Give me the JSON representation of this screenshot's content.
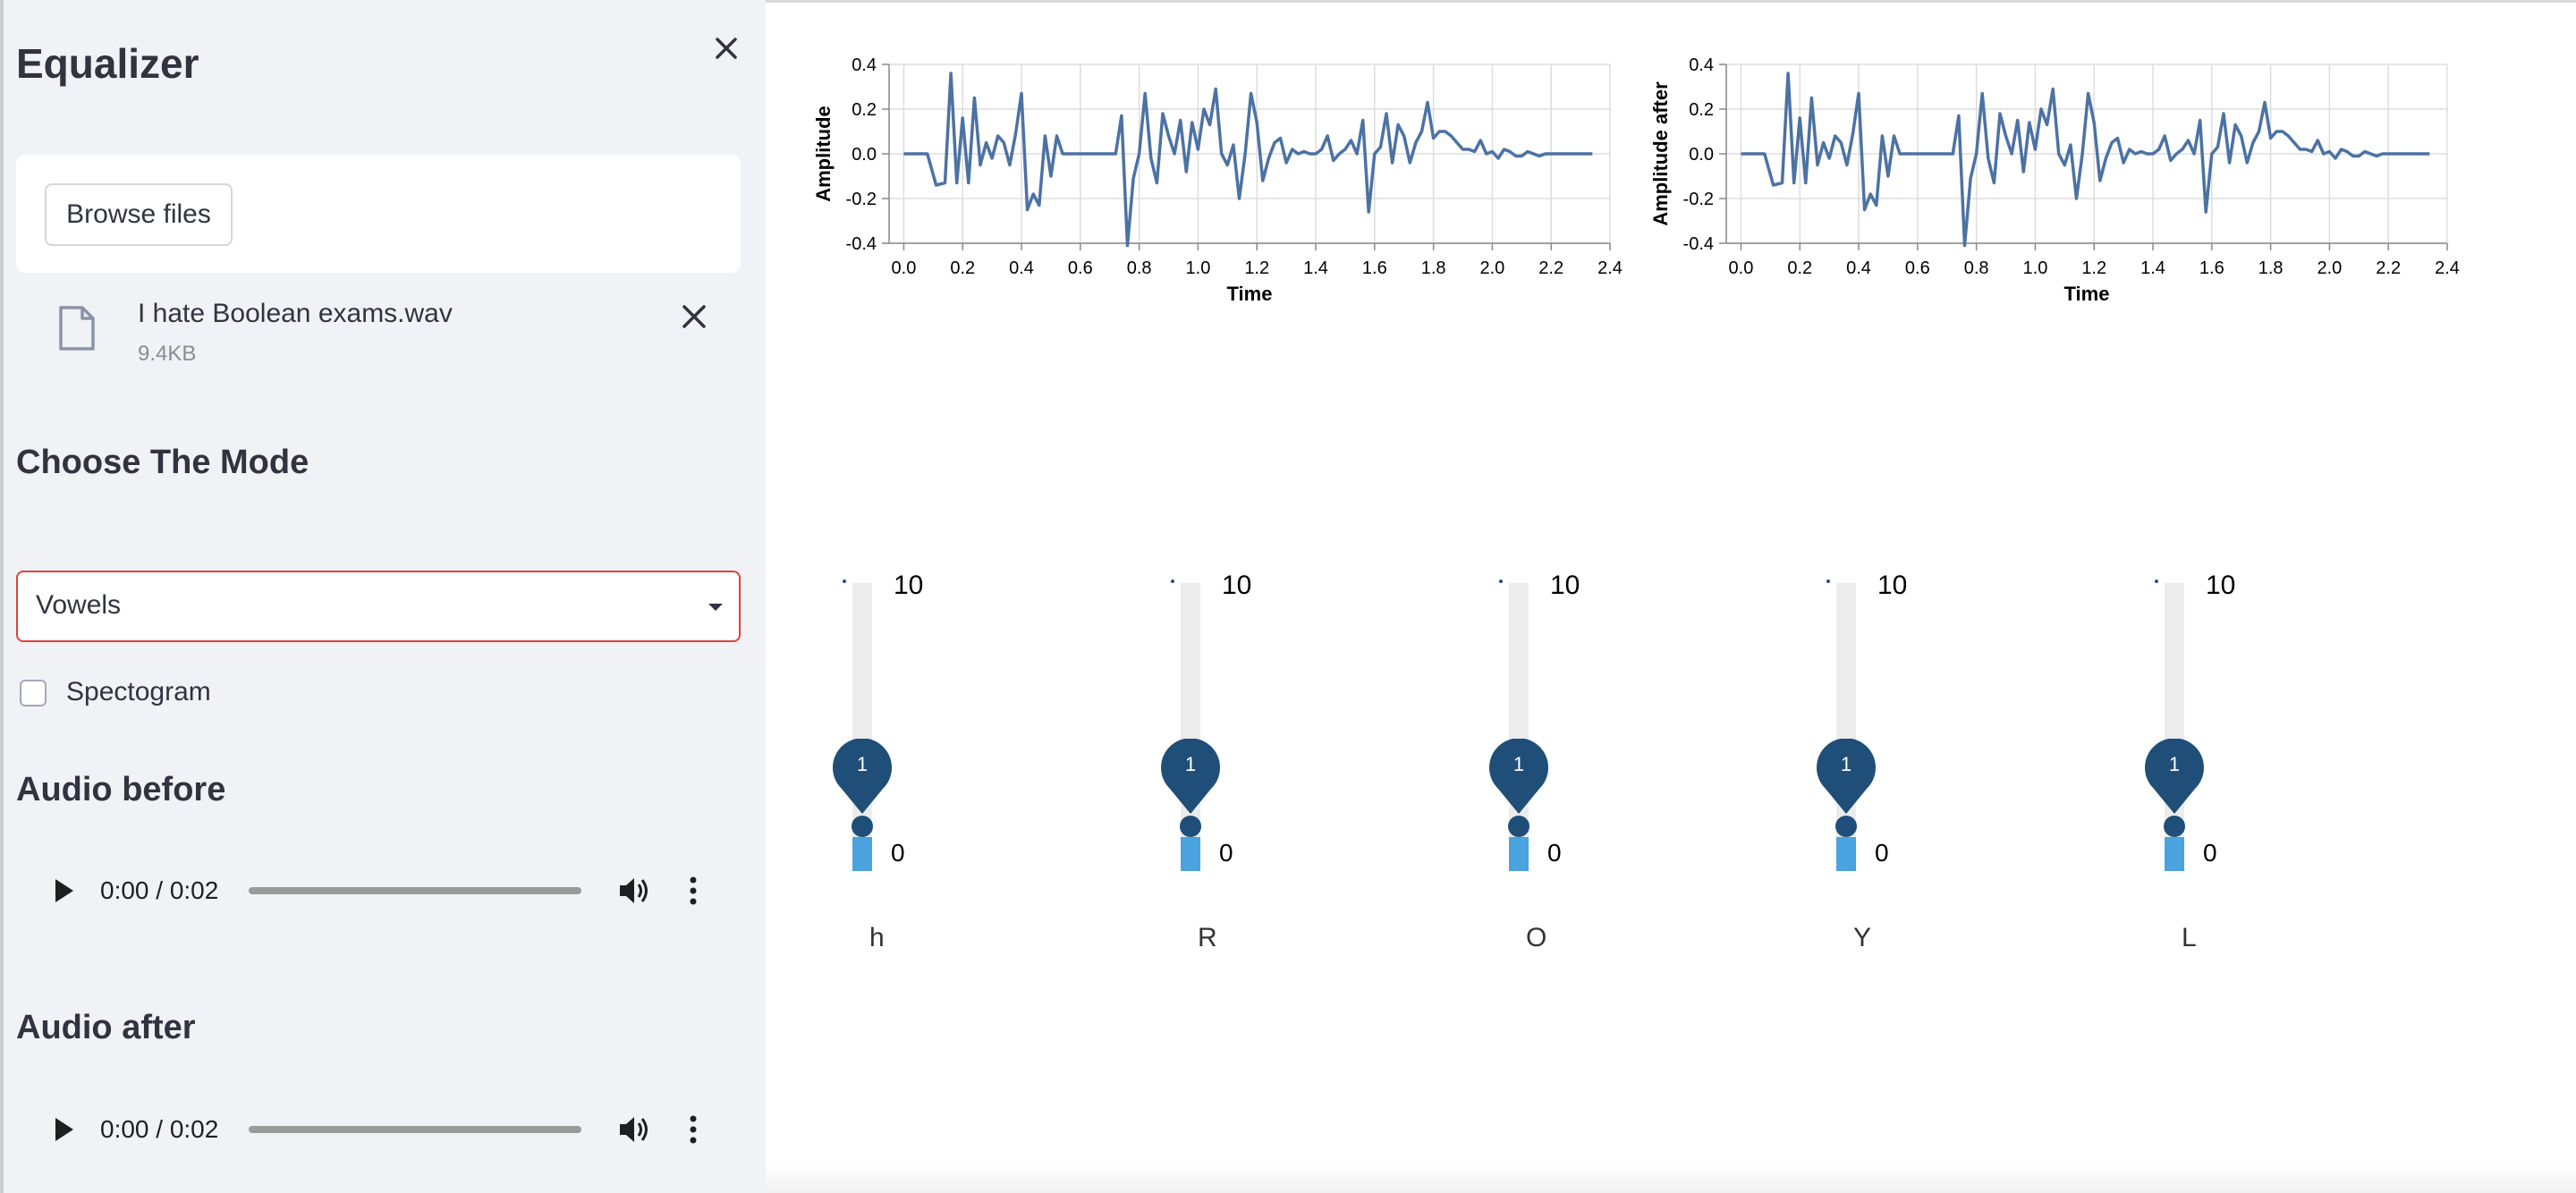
{
  "sidebar": {
    "title": "Equalizer",
    "upload": {
      "browse_label": "Browse files",
      "file_name": "I hate Boolean exams.wav",
      "file_size": "9.4KB"
    },
    "mode_heading": "Choose The Mode",
    "mode_select": {
      "value": "Vowels"
    },
    "spectrogram_checkbox": {
      "label": "Spectogram",
      "checked": false
    },
    "audio_before": {
      "heading": "Audio before",
      "time": "0:00 / 0:02",
      "progress": 0
    },
    "audio_after": {
      "heading": "Audio after",
      "time": "0:00 / 0:02",
      "progress": 0
    }
  },
  "icons": {
    "close": "close-icon",
    "file": "file-icon",
    "remove": "remove-file-icon",
    "caret": "chevron-down-icon",
    "play": "play-icon",
    "volume": "volume-icon",
    "more": "more-vertical-icon"
  },
  "colors": {
    "accent": "#e0413c",
    "line": "#4c72a4",
    "slider_thumb": "#1f4e79",
    "slider_fill": "#4aa3df"
  },
  "chart_data": [
    {
      "type": "line",
      "xlabel": "Time",
      "ylabel": "Amplitude",
      "xlim": [
        -0.05,
        2.4
      ],
      "ylim": [
        -0.4,
        0.4
      ],
      "x_ticks": [
        "0.0",
        "0.2",
        "0.4",
        "0.6",
        "0.8",
        "1.0",
        "1.2",
        "1.4",
        "1.6",
        "1.8",
        "2.0",
        "2.2",
        "2.4"
      ],
      "y_ticks": [
        "0.4",
        "0.2",
        "0.0",
        "-0.2",
        "-0.4"
      ],
      "grid": true,
      "x": [
        0.0,
        0.04,
        0.08,
        0.11,
        0.14,
        0.16,
        0.18,
        0.2,
        0.22,
        0.24,
        0.26,
        0.28,
        0.3,
        0.32,
        0.34,
        0.36,
        0.38,
        0.4,
        0.42,
        0.44,
        0.46,
        0.48,
        0.5,
        0.52,
        0.54,
        0.56,
        0.6,
        0.64,
        0.68,
        0.72,
        0.74,
        0.76,
        0.78,
        0.8,
        0.82,
        0.84,
        0.86,
        0.88,
        0.9,
        0.92,
        0.94,
        0.96,
        0.98,
        1.0,
        1.02,
        1.04,
        1.06,
        1.08,
        1.1,
        1.12,
        1.14,
        1.16,
        1.18,
        1.2,
        1.22,
        1.24,
        1.26,
        1.28,
        1.3,
        1.32,
        1.34,
        1.36,
        1.38,
        1.4,
        1.42,
        1.44,
        1.46,
        1.48,
        1.5,
        1.52,
        1.54,
        1.56,
        1.58,
        1.6,
        1.62,
        1.64,
        1.66,
        1.68,
        1.7,
        1.72,
        1.74,
        1.76,
        1.78,
        1.8,
        1.82,
        1.84,
        1.86,
        1.88,
        1.9,
        1.92,
        1.94,
        1.96,
        1.98,
        2.0,
        2.02,
        2.04,
        2.06,
        2.08,
        2.1,
        2.12,
        2.14,
        2.16,
        2.18,
        2.2,
        2.22,
        2.24,
        2.26,
        2.28,
        2.3,
        2.34
      ],
      "series": [
        {
          "values": [
            0.0,
            0.0,
            0.0,
            -0.14,
            -0.13,
            0.36,
            -0.13,
            0.16,
            -0.13,
            0.25,
            -0.05,
            0.05,
            -0.02,
            0.08,
            0.05,
            -0.05,
            0.09,
            0.27,
            -0.25,
            -0.18,
            -0.23,
            0.08,
            -0.1,
            0.08,
            0.0,
            0.0,
            0.0,
            0.0,
            0.0,
            0.0,
            0.17,
            -0.41,
            -0.11,
            0.0,
            0.27,
            -0.02,
            -0.13,
            0.18,
            0.08,
            0.0,
            0.15,
            -0.08,
            0.14,
            0.02,
            0.2,
            0.13,
            0.29,
            0.0,
            -0.05,
            0.04,
            -0.2,
            0.0,
            0.27,
            0.14,
            -0.12,
            -0.02,
            0.05,
            0.07,
            -0.04,
            0.02,
            0.0,
            0.01,
            0.0,
            0.0,
            0.02,
            0.08,
            -0.03,
            0.0,
            0.02,
            0.06,
            0.0,
            0.15,
            -0.26,
            0.0,
            0.03,
            0.18,
            -0.04,
            0.13,
            0.08,
            -0.04,
            0.05,
            0.1,
            0.23,
            0.07,
            0.1,
            0.1,
            0.08,
            0.05,
            0.02,
            0.02,
            0.01,
            0.06,
            0.0,
            0.01,
            -0.02,
            0.02,
            0.01,
            -0.01,
            -0.01,
            0.01,
            0.0,
            -0.01,
            0.0,
            0.0,
            0.0,
            0.0,
            0.0,
            0.0,
            0.0,
            0.0
          ]
        }
      ]
    },
    {
      "type": "line",
      "xlabel": "Time",
      "ylabel": "Amplitude after",
      "xlim": [
        -0.05,
        2.4
      ],
      "ylim": [
        -0.4,
        0.4
      ],
      "x_ticks": [
        "0.0",
        "0.2",
        "0.4",
        "0.6",
        "0.8",
        "1.0",
        "1.2",
        "1.4",
        "1.6",
        "1.8",
        "2.0",
        "2.2",
        "2.4"
      ],
      "y_ticks": [
        "0.4",
        "0.2",
        "0.0",
        "-0.2",
        "-0.4"
      ],
      "grid": true,
      "x": [
        0.0,
        0.04,
        0.08,
        0.11,
        0.14,
        0.16,
        0.18,
        0.2,
        0.22,
        0.24,
        0.26,
        0.28,
        0.3,
        0.32,
        0.34,
        0.36,
        0.38,
        0.4,
        0.42,
        0.44,
        0.46,
        0.48,
        0.5,
        0.52,
        0.54,
        0.56,
        0.6,
        0.64,
        0.68,
        0.72,
        0.74,
        0.76,
        0.78,
        0.8,
        0.82,
        0.84,
        0.86,
        0.88,
        0.9,
        0.92,
        0.94,
        0.96,
        0.98,
        1.0,
        1.02,
        1.04,
        1.06,
        1.08,
        1.1,
        1.12,
        1.14,
        1.16,
        1.18,
        1.2,
        1.22,
        1.24,
        1.26,
        1.28,
        1.3,
        1.32,
        1.34,
        1.36,
        1.38,
        1.4,
        1.42,
        1.44,
        1.46,
        1.48,
        1.5,
        1.52,
        1.54,
        1.56,
        1.58,
        1.6,
        1.62,
        1.64,
        1.66,
        1.68,
        1.7,
        1.72,
        1.74,
        1.76,
        1.78,
        1.8,
        1.82,
        1.84,
        1.86,
        1.88,
        1.9,
        1.92,
        1.94,
        1.96,
        1.98,
        2.0,
        2.02,
        2.04,
        2.06,
        2.08,
        2.1,
        2.12,
        2.14,
        2.16,
        2.18,
        2.2,
        2.22,
        2.24,
        2.26,
        2.28,
        2.3,
        2.34
      ],
      "series": [
        {
          "values": [
            0.0,
            0.0,
            0.0,
            -0.14,
            -0.13,
            0.36,
            -0.13,
            0.16,
            -0.13,
            0.25,
            -0.05,
            0.05,
            -0.02,
            0.08,
            0.05,
            -0.05,
            0.09,
            0.27,
            -0.25,
            -0.18,
            -0.23,
            0.08,
            -0.1,
            0.08,
            0.0,
            0.0,
            0.0,
            0.0,
            0.0,
            0.0,
            0.17,
            -0.41,
            -0.11,
            0.0,
            0.27,
            -0.02,
            -0.13,
            0.18,
            0.08,
            0.0,
            0.15,
            -0.08,
            0.14,
            0.02,
            0.2,
            0.13,
            0.29,
            0.0,
            -0.05,
            0.04,
            -0.2,
            0.0,
            0.27,
            0.14,
            -0.12,
            -0.02,
            0.05,
            0.07,
            -0.04,
            0.02,
            0.0,
            0.01,
            0.0,
            0.0,
            0.02,
            0.08,
            -0.03,
            0.0,
            0.02,
            0.06,
            0.0,
            0.15,
            -0.26,
            0.0,
            0.03,
            0.18,
            -0.04,
            0.13,
            0.08,
            -0.04,
            0.05,
            0.1,
            0.23,
            0.07,
            0.1,
            0.1,
            0.08,
            0.05,
            0.02,
            0.02,
            0.01,
            0.06,
            0.0,
            0.01,
            -0.02,
            0.02,
            0.01,
            -0.01,
            -0.01,
            0.01,
            0.0,
            -0.01,
            0.0,
            0.0,
            0.0,
            0.0,
            0.0,
            0.0,
            0.0,
            0.0
          ]
        }
      ]
    }
  ],
  "equalizer": {
    "sliders": [
      {
        "label": "h",
        "min": "0",
        "max": "10",
        "value": 1
      },
      {
        "label": "R",
        "min": "0",
        "max": "10",
        "value": 1
      },
      {
        "label": "O",
        "min": "0",
        "max": "10",
        "value": 1
      },
      {
        "label": "Y",
        "min": "0",
        "max": "10",
        "value": 1
      },
      {
        "label": "L",
        "min": "0",
        "max": "10",
        "value": 1
      }
    ]
  }
}
